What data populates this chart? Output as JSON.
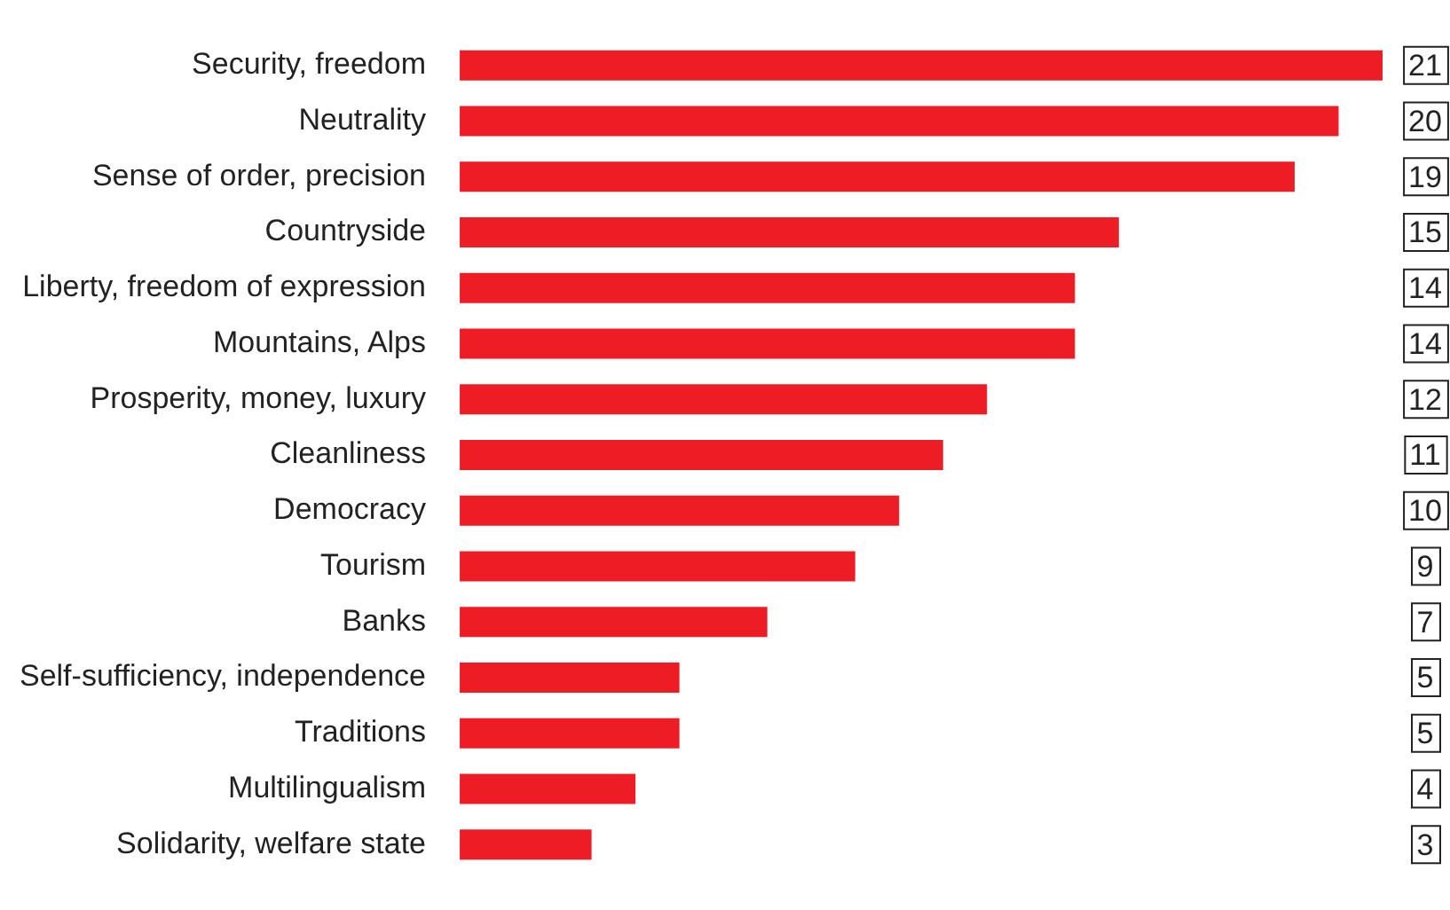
{
  "chart_data": {
    "type": "bar",
    "orientation": "horizontal",
    "categories": [
      "Security, freedom",
      "Neutrality",
      "Sense of order, precision",
      "Countryside",
      "Liberty, freedom of expression",
      "Mountains, Alps",
      "Prosperity, money, luxury",
      "Cleanliness",
      "Democracy",
      "Tourism",
      "Banks",
      "Self-sufficiency, independence",
      "Traditions",
      "Multilingualism",
      "Solidarity, welfare state"
    ],
    "values": [
      21,
      20,
      19,
      15,
      14,
      14,
      12,
      11,
      10,
      9,
      7,
      5,
      5,
      4,
      3
    ],
    "color": "#ee1c25",
    "data_labels": true
  }
}
